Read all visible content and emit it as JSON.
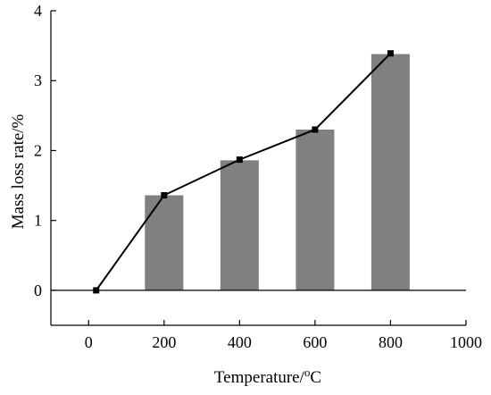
{
  "chart_data": {
    "type": "bar",
    "title": "",
    "xlabel": "Temperature/°C",
    "ylabel": "Mass loss rate/%",
    "xlim": [
      -100,
      1000
    ],
    "ylim": [
      -0.5,
      4
    ],
    "xticks": [
      0,
      200,
      400,
      600,
      800,
      1000
    ],
    "yticks": [
      0,
      1,
      2,
      3,
      4
    ],
    "grid": false,
    "legend": "none",
    "bar_color": "#808080",
    "line_color": "#000000",
    "bars": [
      {
        "x": 200,
        "value": 1.36
      },
      {
        "x": 400,
        "value": 1.86
      },
      {
        "x": 600,
        "value": 2.3
      },
      {
        "x": 800,
        "value": 3.38
      }
    ],
    "series": [
      {
        "type": "line",
        "marker": "square",
        "x": [
          20,
          200,
          400,
          600,
          800
        ],
        "y": [
          0,
          1.36,
          1.87,
          2.3,
          3.39
        ]
      }
    ]
  }
}
